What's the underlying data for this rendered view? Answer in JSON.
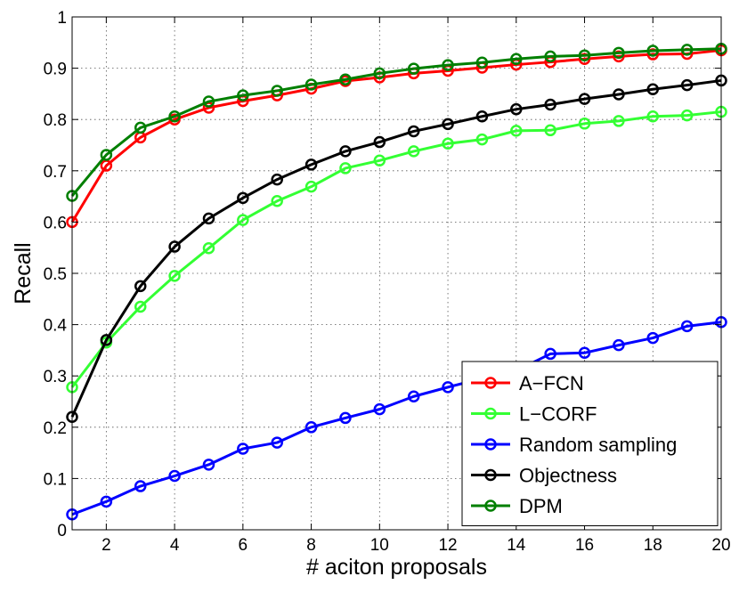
{
  "chart_data": {
    "type": "line",
    "title": "",
    "xlabel": "# aciton proposals",
    "ylabel": "Recall",
    "xlim": [
      1,
      20
    ],
    "ylim": [
      0,
      1
    ],
    "xticks": [
      2,
      4,
      6,
      8,
      10,
      12,
      14,
      16,
      18,
      20
    ],
    "yticks": [
      0,
      0.1,
      0.2,
      0.3,
      0.4,
      0.5,
      0.6,
      0.7,
      0.8,
      0.9,
      1
    ],
    "ytick_labels": [
      "0",
      "0.1",
      "0.2",
      "0.3",
      "0.4",
      "0.5",
      "0.6",
      "0.7",
      "0.8",
      "0.9",
      "1"
    ],
    "grid": true,
    "legend_position": "bottom-right",
    "x": [
      1,
      2,
      3,
      4,
      5,
      6,
      7,
      8,
      9,
      10,
      11,
      12,
      13,
      14,
      15,
      16,
      17,
      18,
      19,
      20
    ],
    "series": [
      {
        "name": "A−FCN",
        "color": "#ff0000",
        "values": [
          0.6,
          0.71,
          0.765,
          0.8,
          0.823,
          0.836,
          0.847,
          0.86,
          0.875,
          0.882,
          0.89,
          0.895,
          0.901,
          0.907,
          0.912,
          0.918,
          0.923,
          0.927,
          0.928,
          0.935
        ]
      },
      {
        "name": "L−CORF",
        "color": "#33ff33",
        "values": [
          0.278,
          0.365,
          0.435,
          0.495,
          0.549,
          0.604,
          0.641,
          0.669,
          0.705,
          0.72,
          0.738,
          0.753,
          0.761,
          0.778,
          0.779,
          0.792,
          0.797,
          0.806,
          0.808,
          0.815
        ]
      },
      {
        "name": "Random sampling",
        "color": "#0000ff",
        "values": [
          0.03,
          0.055,
          0.085,
          0.105,
          0.127,
          0.158,
          0.17,
          0.2,
          0.218,
          0.235,
          0.26,
          0.278,
          0.295,
          0.31,
          0.343,
          0.345,
          0.36,
          0.374,
          0.397,
          0.405
        ]
      },
      {
        "name": "Objectness",
        "color": "#000000",
        "values": [
          0.22,
          0.37,
          0.475,
          0.552,
          0.607,
          0.647,
          0.683,
          0.712,
          0.738,
          0.756,
          0.777,
          0.791,
          0.806,
          0.82,
          0.829,
          0.84,
          0.849,
          0.859,
          0.867,
          0.876
        ]
      },
      {
        "name": "DPM",
        "color": "#007f00",
        "values": [
          0.651,
          0.731,
          0.784,
          0.806,
          0.835,
          0.847,
          0.856,
          0.868,
          0.878,
          0.89,
          0.899,
          0.906,
          0.911,
          0.918,
          0.923,
          0.925,
          0.93,
          0.934,
          0.936,
          0.938
        ]
      }
    ]
  }
}
